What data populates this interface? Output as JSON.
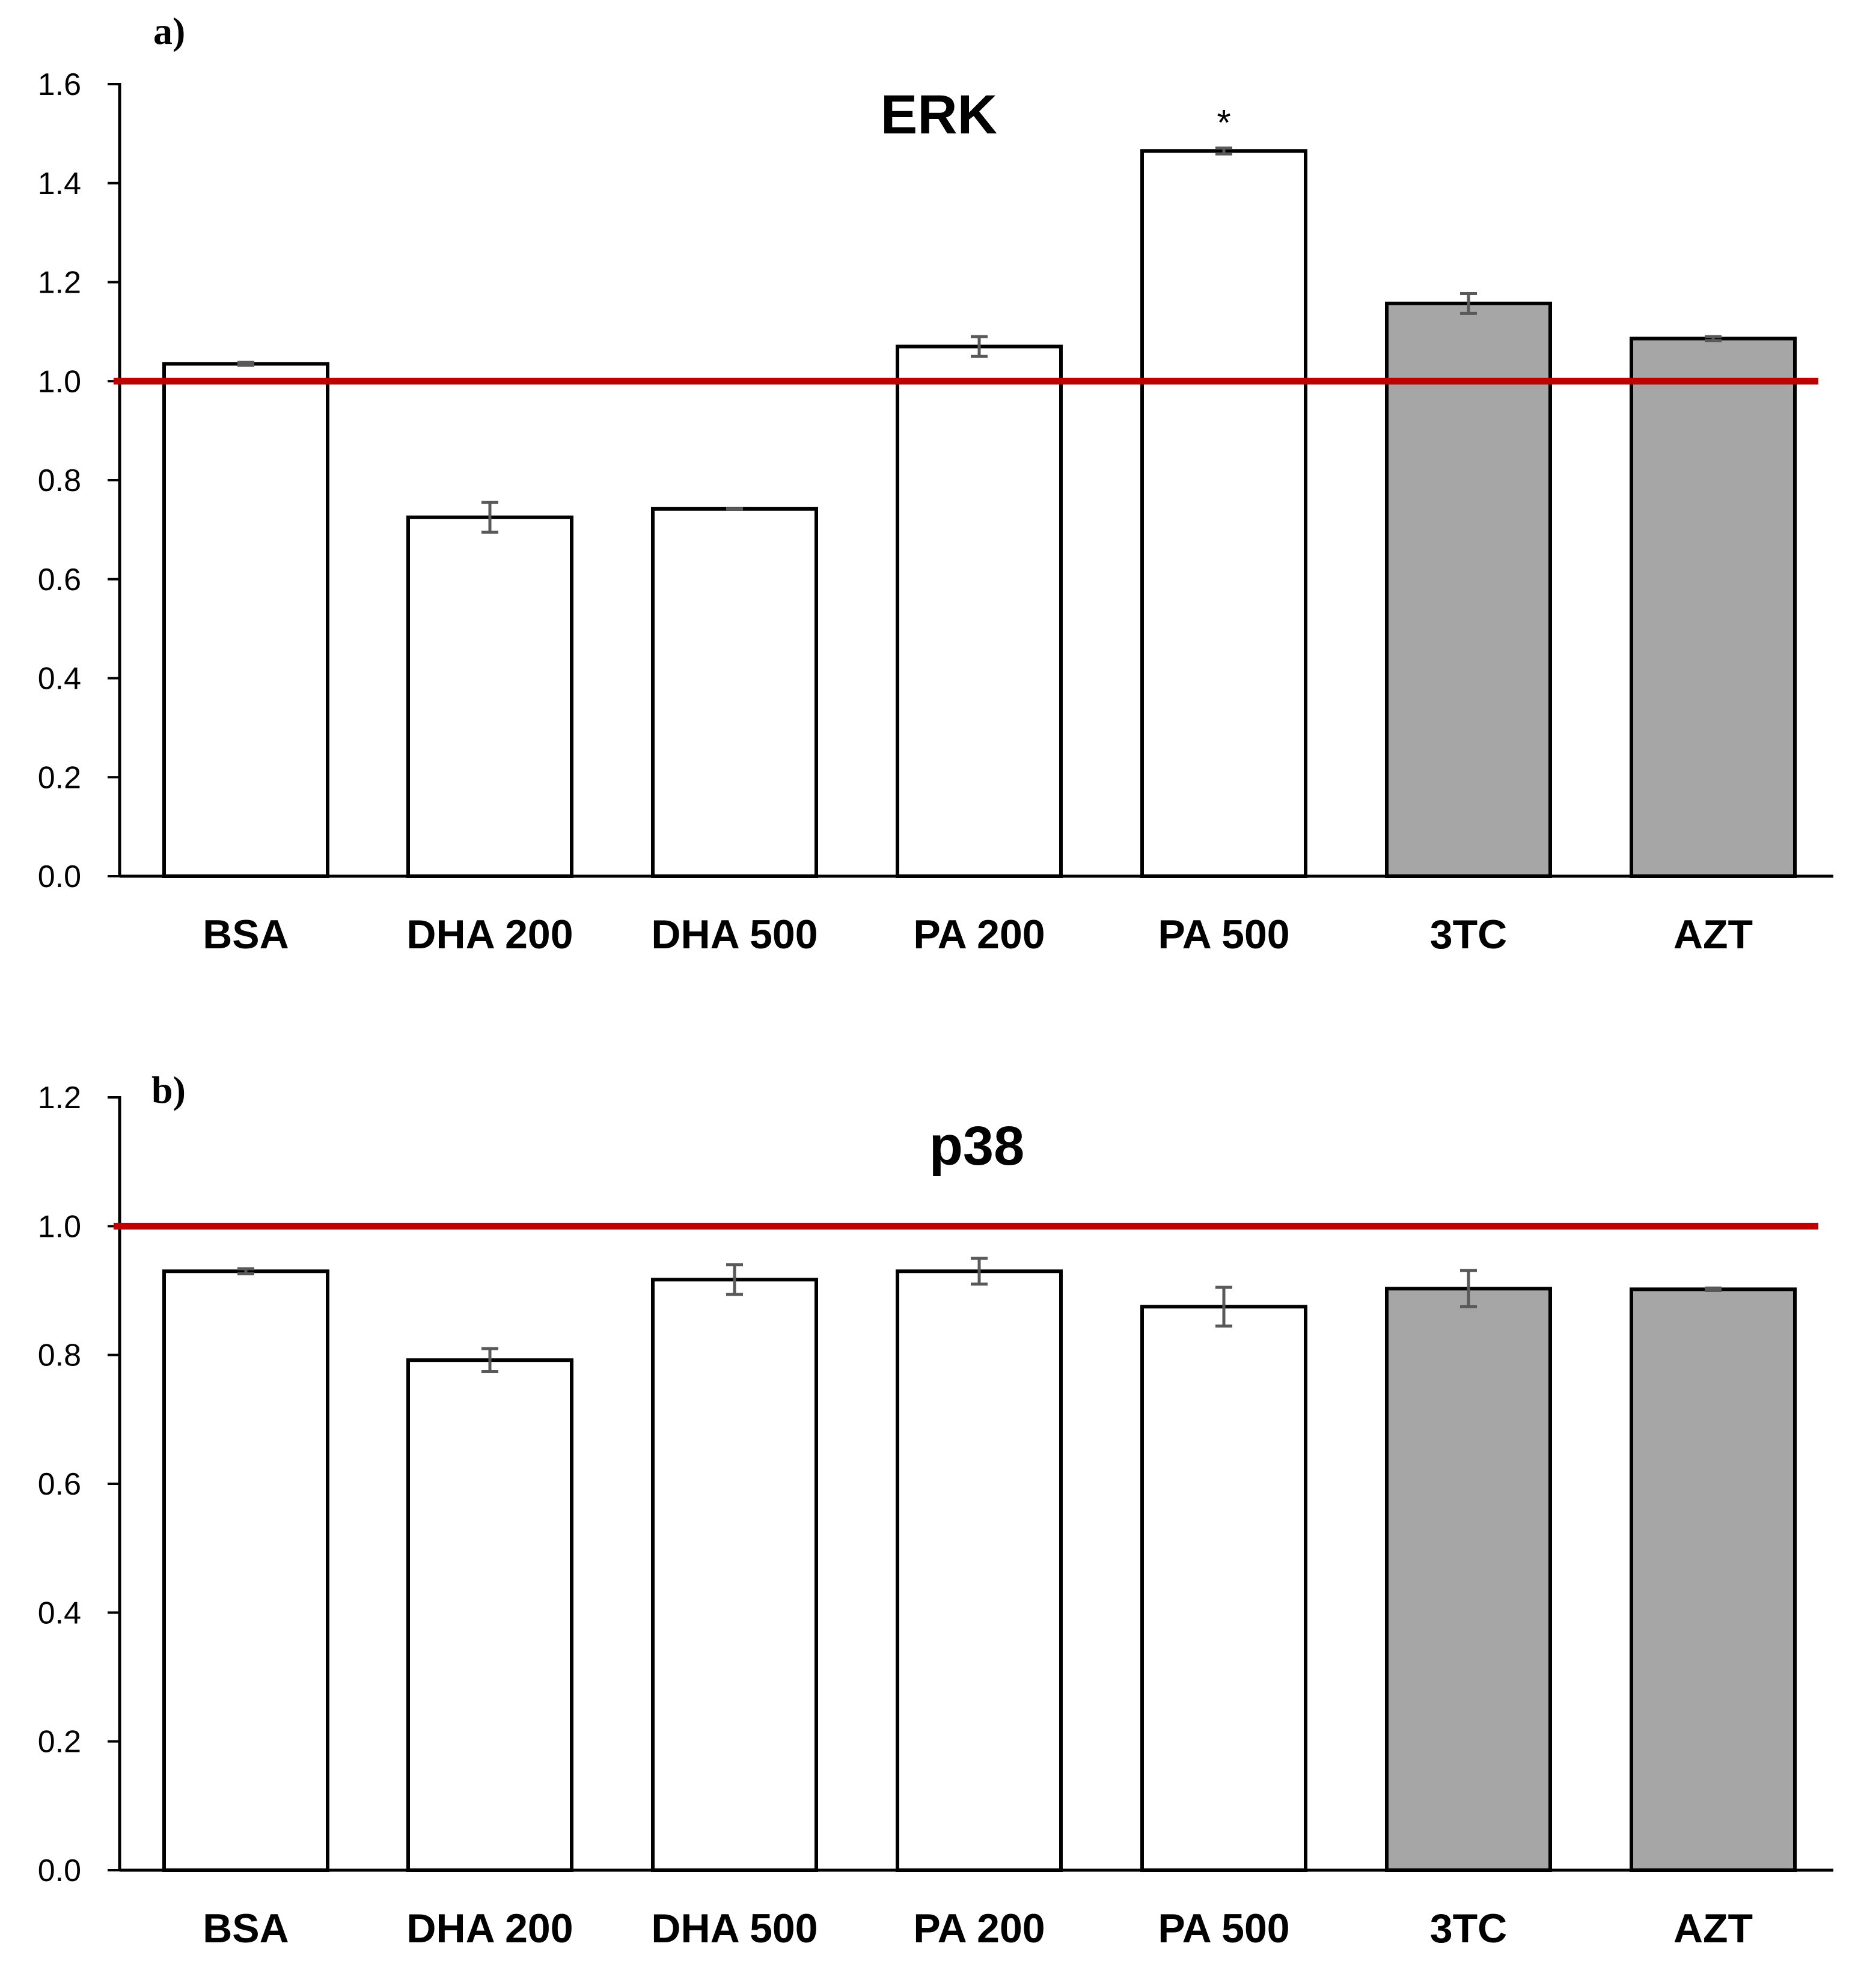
{
  "chart_data": [
    {
      "panel": "a)",
      "type": "bar",
      "title": "ERK",
      "categories": [
        "BSA",
        "DHA 200",
        "DHA 500",
        "PA 200",
        "PA 500",
        "3TC",
        "AZT"
      ],
      "values": [
        1.035,
        0.725,
        0.742,
        1.07,
        1.465,
        1.157,
        1.086
      ],
      "errors": [
        0.003,
        0.03,
        0.0,
        0.02,
        0.006,
        0.02,
        0.004
      ],
      "annotations": [
        "",
        "",
        "",
        "",
        "*",
        "",
        ""
      ],
      "ylim": [
        0.0,
        1.6
      ],
      "yticks": [
        "0.0",
        "0.2",
        "0.4",
        "0.6",
        "0.8",
        "1.0",
        "1.2",
        "1.4",
        "1.6"
      ],
      "reference_line": 1.0,
      "xlabel": "",
      "ylabel": ""
    },
    {
      "panel": "b)",
      "type": "bar",
      "title": "p38",
      "categories": [
        "BSA",
        "DHA 200",
        "DHA 500",
        "PA 200",
        "PA 500",
        "3TC",
        "AZT"
      ],
      "values": [
        0.93,
        0.792,
        0.917,
        0.93,
        0.875,
        0.903,
        0.902
      ],
      "errors": [
        0.004,
        0.018,
        0.023,
        0.02,
        0.03,
        0.028,
        0.002
      ],
      "annotations": [
        "",
        "",
        "",
        "",
        "",
        "",
        ""
      ],
      "ylim": [
        0.0,
        1.2
      ],
      "yticks": [
        "0.0",
        "0.2",
        "0.4",
        "0.6",
        "0.8",
        "1.0",
        "1.2"
      ],
      "reference_line": 1.0,
      "xlabel": "",
      "ylabel": ""
    }
  ],
  "colors": {
    "control_fill": "#ffffff",
    "drug_fill": "#a6a6a6",
    "bar_outline": "#000000",
    "error_bar": "#595959",
    "reference_line": "#c00000",
    "axis": "#000000"
  },
  "bar_fill_groups": [
    "control",
    "control",
    "control",
    "control",
    "control",
    "drug",
    "drug"
  ]
}
